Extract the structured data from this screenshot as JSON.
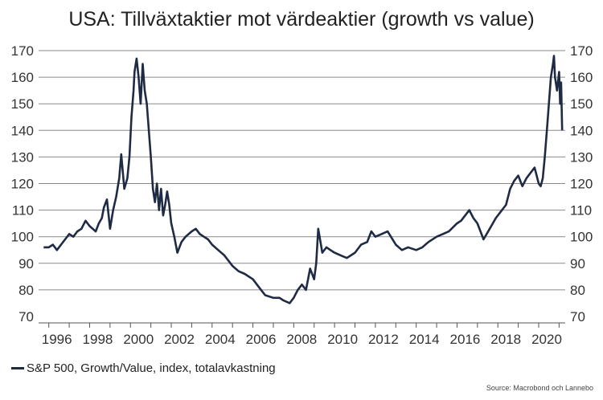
{
  "chart_data": {
    "type": "line",
    "title": "USA: Tillväxtaktier mot värdeaktier (growth vs value)",
    "ylim": [
      70,
      170
    ],
    "yticks": [
      70,
      80,
      90,
      100,
      110,
      120,
      130,
      140,
      150,
      160,
      170
    ],
    "xlim": [
      1995.5,
      2021.3
    ],
    "xticks": [
      1996,
      1998,
      2000,
      2002,
      2004,
      2006,
      2008,
      2010,
      2012,
      2014,
      2016,
      2018,
      2020
    ],
    "xtick_labels": [
      "1996",
      "1998",
      "2000",
      "2002",
      "2004",
      "2006",
      "2008",
      "2010",
      "2012",
      "2014",
      "2016",
      "2018",
      "2020"
    ],
    "grid": true,
    "legend_position": "bottom-left",
    "color": "#1f2a44",
    "series": [
      {
        "name": "S&P 500, Growth/Value, index, totalavkastning",
        "x": [
          1995.75,
          1996.0,
          1996.2,
          1996.4,
          1996.6,
          1996.8,
          1997.0,
          1997.2,
          1997.4,
          1997.6,
          1997.8,
          1998.0,
          1998.15,
          1998.3,
          1998.45,
          1998.6,
          1998.7,
          1998.85,
          1999.0,
          1999.15,
          1999.3,
          1999.45,
          1999.55,
          1999.7,
          1999.85,
          1999.95,
          2000.05,
          2000.15,
          2000.2,
          2000.3,
          2000.4,
          2000.5,
          2000.6,
          2000.7,
          2000.8,
          2000.9,
          2001.0,
          2001.1,
          2001.2,
          2001.3,
          2001.4,
          2001.5,
          2001.6,
          2001.7,
          2001.8,
          2001.9,
          2002.0,
          2002.15,
          2002.3,
          2002.5,
          2002.7,
          2003.0,
          2003.2,
          2003.4,
          2003.6,
          2003.8,
          2004.0,
          2004.3,
          2004.6,
          2005.0,
          2005.3,
          2005.6,
          2006.0,
          2006.2,
          2006.4,
          2006.6,
          2007.0,
          2007.3,
          2007.5,
          2007.8,
          2008.0,
          2008.2,
          2008.4,
          2008.6,
          2008.8,
          2008.9,
          2009.0,
          2009.1,
          2009.2,
          2009.4,
          2009.6,
          2009.8,
          2010.0,
          2010.3,
          2010.6,
          2011.0,
          2011.3,
          2011.6,
          2011.8,
          2012.0,
          2012.3,
          2012.6,
          2013.0,
          2013.3,
          2013.6,
          2014.0,
          2014.3,
          2014.6,
          2015.0,
          2015.3,
          2015.6,
          2016.0,
          2016.2,
          2016.4,
          2016.6,
          2016.8,
          2017.0,
          2017.3,
          2017.6,
          2017.9,
          2018.2,
          2018.4,
          2018.6,
          2018.8,
          2019.0,
          2019.2,
          2019.4,
          2019.6,
          2019.8,
          2020.0,
          2020.1,
          2020.2,
          2020.3,
          2020.4,
          2020.5,
          2020.6,
          2020.7,
          2020.75,
          2020.8,
          2020.9,
          2021.0,
          2021.05,
          2021.1,
          2021.15
        ],
        "values": [
          96,
          96,
          97,
          95,
          97,
          99,
          101,
          100,
          102,
          103,
          106,
          104,
          103,
          102,
          105,
          107,
          111,
          114,
          103,
          110,
          115,
          122,
          131,
          118,
          122,
          130,
          145,
          155,
          162,
          167,
          160,
          150,
          165,
          155,
          150,
          140,
          130,
          118,
          113,
          120,
          110,
          118,
          108,
          112,
          117,
          112,
          105,
          100,
          94,
          98,
          100,
          102,
          103,
          101,
          100,
          99,
          97,
          95,
          93,
          89,
          87,
          86,
          84,
          82,
          80,
          78,
          77,
          77,
          76,
          75,
          77,
          80,
          82,
          80,
          88,
          86,
          84,
          90,
          103,
          94,
          96,
          95,
          94,
          93,
          92,
          94,
          97,
          98,
          102,
          100,
          101,
          102,
          97,
          95,
          96,
          95,
          96,
          98,
          100,
          101,
          102,
          105,
          106,
          108,
          110,
          107,
          105,
          99,
          103,
          107,
          110,
          112,
          118,
          121,
          123,
          119,
          122,
          124,
          126,
          120,
          119,
          122,
          130,
          140,
          150,
          160,
          165,
          168,
          160,
          155,
          162,
          150,
          158,
          140
        ]
      }
    ]
  },
  "source": "Source: Macrobond och Lannebo"
}
